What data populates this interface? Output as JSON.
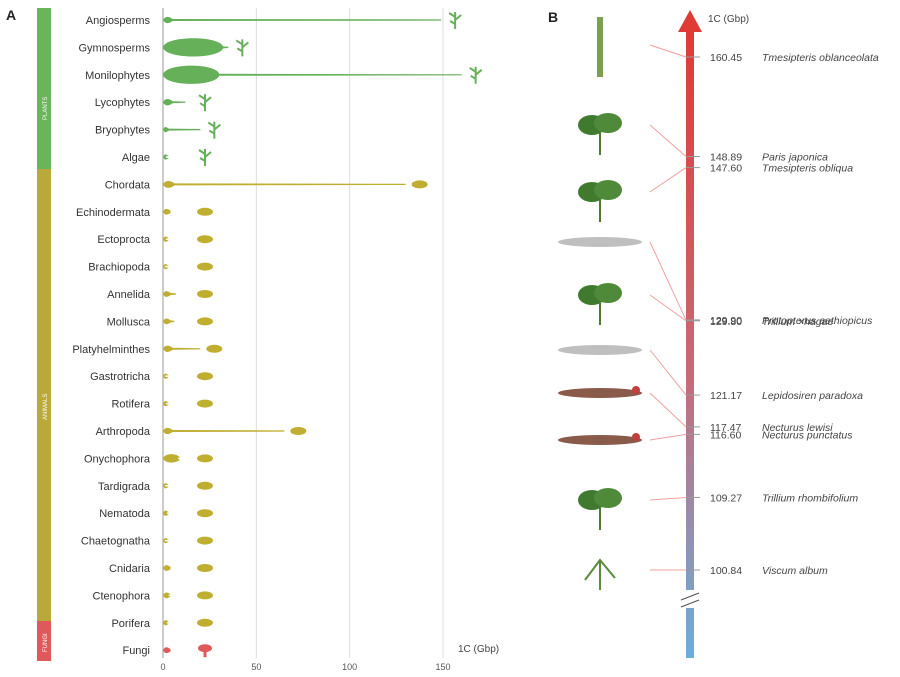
{
  "panels": {
    "a_label": "A",
    "b_label": "B"
  },
  "kingdoms": [
    {
      "label": "PLANTS",
      "color": "#6ab55a"
    },
    {
      "label": "ANIMALS",
      "color": "#b8a93a"
    },
    {
      "label": "FUNGI",
      "color": "#e0595a"
    }
  ],
  "icons": {
    "plants": "plant-icon",
    "animals": "animal-icon",
    "fungi": "mushroom-icon"
  },
  "chart_data": [
    {
      "type": "violin",
      "title": "",
      "xlabel": "1C (Gbp)",
      "ylabel": "",
      "xlim": [
        0,
        160
      ],
      "xticks": [
        0,
        50,
        100,
        150
      ],
      "grid": true,
      "color_by_kingdom": {
        "PLANTS": "#66b05a",
        "ANIMALS": "#bfae30",
        "FUNGI": "#e0595a"
      },
      "categories": [
        {
          "name": "Angiosperms",
          "kingdom": "PLANTS",
          "max": 149.0,
          "bulk": 3
        },
        {
          "name": "Gymnosperms",
          "kingdom": "PLANTS",
          "max": 35.0,
          "bulk": 30
        },
        {
          "name": "Monilophytes",
          "kingdom": "PLANTS",
          "max": 160.0,
          "bulk": 28
        },
        {
          "name": "Lycophytes",
          "kingdom": "PLANTS",
          "max": 12.0,
          "bulk": 3
        },
        {
          "name": "Bryophytes",
          "kingdom": "PLANTS",
          "max": 20.0,
          "bulk": 1
        },
        {
          "name": "Algae",
          "kingdom": "PLANTS",
          "max": 1.5,
          "bulk": 1
        },
        {
          "name": "Chordata",
          "kingdom": "ANIMALS",
          "max": 130.0,
          "bulk": 4
        },
        {
          "name": "Echinodermata",
          "kingdom": "ANIMALS",
          "max": 4.0,
          "bulk": 2
        },
        {
          "name": "Ectoprocta",
          "kingdom": "ANIMALS",
          "max": 1.5,
          "bulk": 1
        },
        {
          "name": "Brachiopoda",
          "kingdom": "ANIMALS",
          "max": 1.0,
          "bulk": 1
        },
        {
          "name": "Annelida",
          "kingdom": "ANIMALS",
          "max": 7.0,
          "bulk": 2
        },
        {
          "name": "Mollusca",
          "kingdom": "ANIMALS",
          "max": 6.0,
          "bulk": 2
        },
        {
          "name": "Platyhelminthes",
          "kingdom": "ANIMALS",
          "max": 20.0,
          "bulk": 3
        },
        {
          "name": "Gastrotricha",
          "kingdom": "ANIMALS",
          "max": 1.0,
          "bulk": 1
        },
        {
          "name": "Rotifera",
          "kingdom": "ANIMALS",
          "max": 1.5,
          "bulk": 1
        },
        {
          "name": "Arthropoda",
          "kingdom": "ANIMALS",
          "max": 65.0,
          "bulk": 3
        },
        {
          "name": "Onychophora",
          "kingdom": "ANIMALS",
          "max": 8.0,
          "bulk": 7
        },
        {
          "name": "Tardigrada",
          "kingdom": "ANIMALS",
          "max": 1.0,
          "bulk": 1
        },
        {
          "name": "Nematoda",
          "kingdom": "ANIMALS",
          "max": 2.0,
          "bulk": 1
        },
        {
          "name": "Chaetognatha",
          "kingdom": "ANIMALS",
          "max": 1.0,
          "bulk": 1
        },
        {
          "name": "Cnidaria",
          "kingdom": "ANIMALS",
          "max": 4.0,
          "bulk": 2
        },
        {
          "name": "Ctenophora",
          "kingdom": "ANIMALS",
          "max": 3.0,
          "bulk": 2
        },
        {
          "name": "Porifera",
          "kingdom": "ANIMALS",
          "max": 2.0,
          "bulk": 1
        },
        {
          "name": "Fungi",
          "kingdom": "FUNGI",
          "max": 4.0,
          "bulk": 2
        }
      ]
    },
    {
      "type": "ranked-scale",
      "axis_label": "1C (Gbp)",
      "colors": {
        "top": "#e03a34",
        "bottom": "#6aaedc"
      },
      "axis_break": true,
      "points": [
        {
          "value": 160.45,
          "label": "160.45",
          "species": "Tmesipteris oblanceolata",
          "icon": "fern-icon"
        },
        {
          "value": 148.89,
          "label": "148.89",
          "species": "Paris japonica",
          "icon": "leaf-whorl-icon"
        },
        {
          "value": 147.6,
          "label": "147.60",
          "species": "Tmesipteris obliqua",
          "icon": "fern-frond-icon"
        },
        {
          "value": 129.9,
          "label": "129.90",
          "species": "Protopterus aethiopicus",
          "icon": "lungfish-icon"
        },
        {
          "value": 129.8,
          "label": "129.80",
          "species": "Trillium ×hagae",
          "icon": "trillium-icon"
        },
        {
          "value": 121.17,
          "label": "121.17",
          "species": "Lepidosiren paradoxa",
          "icon": "lungfish-icon"
        },
        {
          "value": 117.47,
          "label": "117.47",
          "species": "Necturus lewisi",
          "icon": "salamander-icon"
        },
        {
          "value": 116.6,
          "label": "116.60",
          "species": "Necturus punctatus",
          "icon": "salamander-icon"
        },
        {
          "value": 109.27,
          "label": "109.27",
          "species": "Trillium rhombifolium",
          "icon": "trillium-icon"
        },
        {
          "value": 100.84,
          "label": "100.84",
          "species": "Viscum album",
          "icon": "mistletoe-icon"
        }
      ]
    }
  ]
}
